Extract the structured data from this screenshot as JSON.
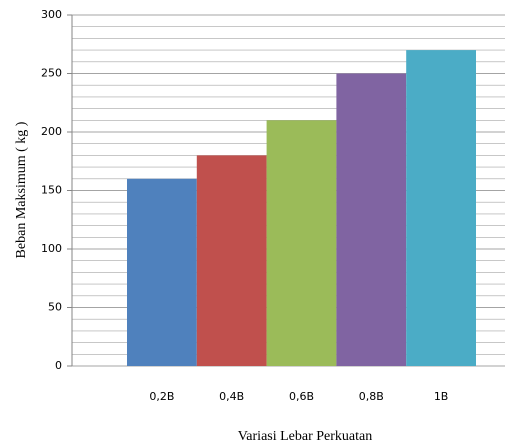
{
  "chart_data": {
    "type": "bar",
    "categories": [
      "0,2B",
      "0,4B",
      "0,6B",
      "0,8B",
      "1B"
    ],
    "values": [
      160,
      180,
      210,
      250,
      270
    ],
    "colors": [
      "#4f81bd",
      "#c0504d",
      "#9bbb59",
      "#8064a2",
      "#4bacc6"
    ],
    "ylim": [
      0,
      300
    ],
    "yticks": [
      0,
      50,
      100,
      150,
      200,
      250,
      300
    ],
    "minor_yticks": [
      10,
      20,
      30,
      40,
      60,
      70,
      80,
      90,
      110,
      120,
      130,
      140,
      160,
      170,
      180,
      190,
      210,
      220,
      230,
      240,
      260,
      270,
      280,
      290
    ],
    "grid": true,
    "x_label": "Variasi Lebar Perkuatan",
    "y_label": "Beban Maksimum  ( kg )"
  }
}
